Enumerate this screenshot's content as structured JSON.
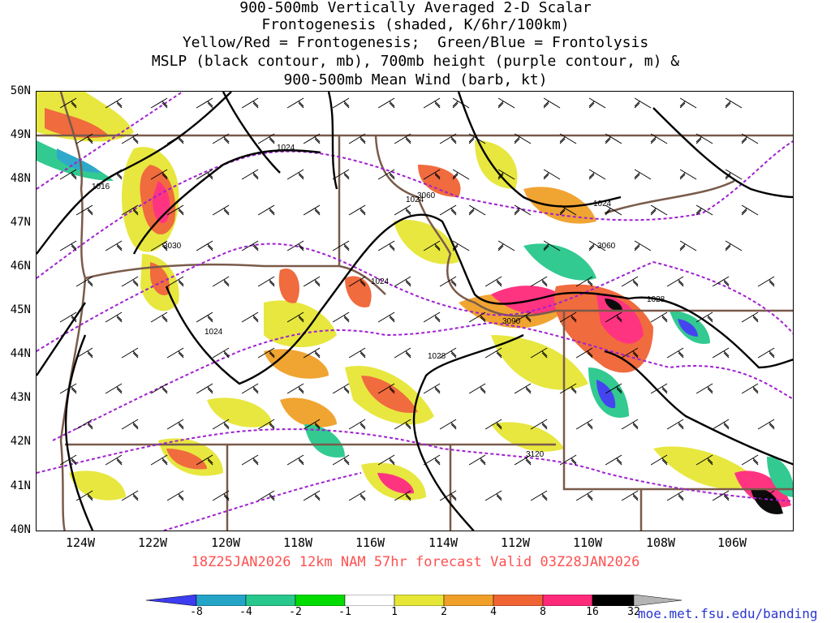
{
  "title_lines": [
    "900-500mb Vertically Averaged 2-D Scalar",
    "Frontogenesis (shaded, K/6hr/100km)",
    "Yellow/Red = Frontogenesis;  Green/Blue = Frontolysis",
    "MSLP (black contour, mb), 700mb height (purple contour, m) &",
    "900-500mb Mean Wind (barb, kt)"
  ],
  "lat_labels": [
    "50N",
    "49N",
    "48N",
    "47N",
    "46N",
    "45N",
    "44N",
    "43N",
    "42N",
    "41N",
    "40N"
  ],
  "lon_labels": [
    "124W",
    "122W",
    "120W",
    "118W",
    "116W",
    "114W",
    "112W",
    "110W",
    "108W",
    "106W"
  ],
  "footer": "18Z25JAN2026 12km NAM 57hr forecast Valid 03Z28JAN2026",
  "credit": "moe.met.fsu.edu/banding",
  "colorbar": {
    "labels": [
      "-8",
      "-4",
      "-2",
      "-1",
      "1",
      "2",
      "4",
      "8",
      "16",
      "32"
    ],
    "colors": [
      "#3c3cf0",
      "#24a5c8",
      "#28c88c",
      "#00dc00",
      "#ffffff",
      "#e6e636",
      "#f0a028",
      "#f06434",
      "#ff2a7a",
      "#000000",
      "#b4b4b4"
    ]
  },
  "contour_labels": {
    "mslp": [
      "1024",
      "1016",
      "1024",
      "1024",
      "1024",
      "1024",
      "1028",
      "1028"
    ],
    "height": [
      "3030",
      "3060",
      "3060",
      "3090",
      "3120"
    ]
  },
  "colors": {
    "mslp": "#000000",
    "height": "#a020d0",
    "borders": "#7a5a4a",
    "barb": "#000000"
  }
}
